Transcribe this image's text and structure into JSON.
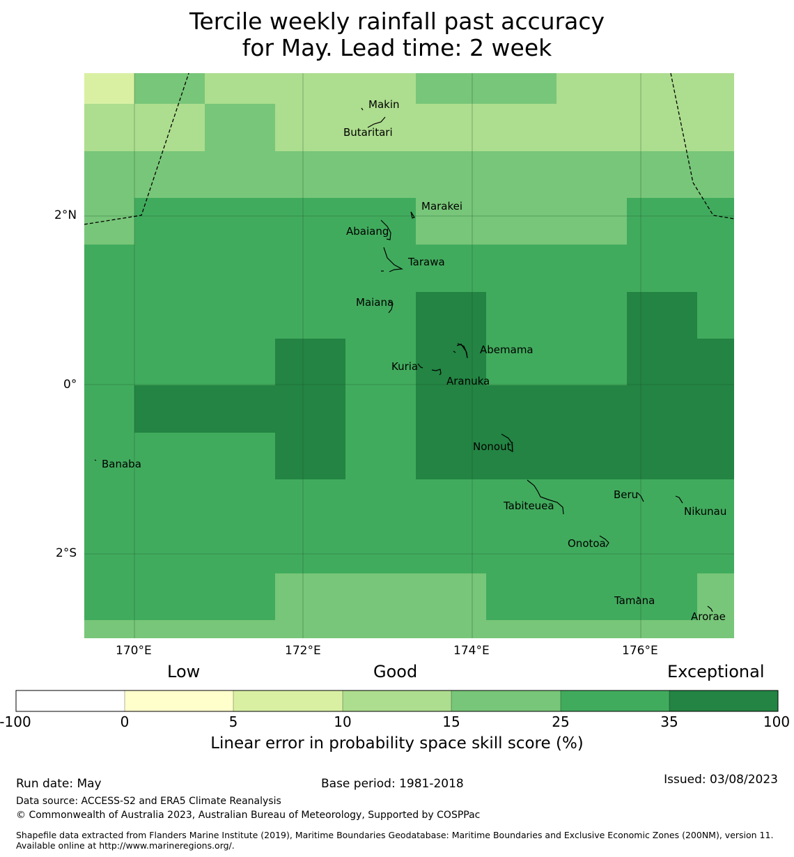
{
  "title": {
    "line1": "Tercile weekly rainfall past accuracy",
    "line2": "for May. Lead time: 2 week"
  },
  "map": {
    "latitude_labels": [
      "2°N",
      "0°",
      "2°S"
    ],
    "longitude_labels": [
      "170°E",
      "172°E",
      "174°E",
      "176°E"
    ],
    "islands": [
      {
        "name": "Makin"
      },
      {
        "name": "Butaritari"
      },
      {
        "name": "Marakei"
      },
      {
        "name": "Abaiang"
      },
      {
        "name": "Tarawa"
      },
      {
        "name": "Maiana"
      },
      {
        "name": "Abemama"
      },
      {
        "name": "Kuria"
      },
      {
        "name": "Aranuka"
      },
      {
        "name": "Nonouti"
      },
      {
        "name": "Banaba"
      },
      {
        "name": "Tabiteuea"
      },
      {
        "name": "Beru"
      },
      {
        "name": "Nikunau"
      },
      {
        "name": "Onotoa"
      },
      {
        "name": "Tamana"
      },
      {
        "name": "Arorae"
      }
    ]
  },
  "colorbar": {
    "categories": [
      "Low",
      "Good",
      "Exceptional"
    ],
    "ticks": [
      "-100",
      "0",
      "5",
      "10",
      "15",
      "25",
      "35",
      "100"
    ],
    "colors": [
      "#ffffff",
      "#ffffcc",
      "#d9f0a3",
      "#addd8e",
      "#78c679",
      "#41ab5d",
      "#238443"
    ],
    "label": "Linear error in probability space skill score (%)"
  },
  "footer": {
    "run_date": "Run date: May",
    "base_period": "Base period: 1981-2018",
    "issued": "Issued: 03/08/2023",
    "data_source": "Data source: ACCESS-S2 and ERA5 Climate Reanalysis",
    "copyright": "© Commonwealth of Australia 2023, Australian Bureau of Meteorology, Supported by COSPPac",
    "shapefile": "Shapefile data extracted from Flanders Marine Institute (2019), Maritime Boundaries Geodatabase: Maritime Boundaries and Exclusive Economic Zones (200NM), version 11. Available online at http://www.marineregions.org/."
  }
}
